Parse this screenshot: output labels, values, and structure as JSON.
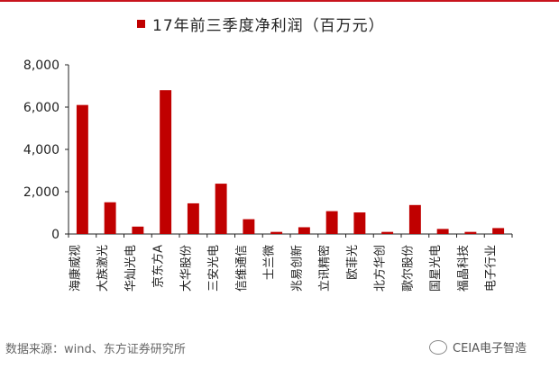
{
  "chart_data": {
    "type": "bar",
    "title": "",
    "xlabel": "",
    "ylabel": "",
    "ylim": [
      0,
      8000
    ],
    "yticks": [
      "0",
      "2,000",
      "4,000",
      "6,000",
      "8,000"
    ],
    "ytick_values": [
      0,
      2000,
      4000,
      6000,
      8000
    ],
    "grid": false,
    "legend_position": "top",
    "series": [
      {
        "name": "17年前三季度净利润（百万元）",
        "color": "#c00000",
        "values": [
          6100,
          1500,
          350,
          6800,
          1450,
          2380,
          700,
          100,
          320,
          1080,
          1020,
          100,
          1370,
          240,
          100,
          280
        ]
      }
    ],
    "categories": [
      "海康威视",
      "大族激光",
      "华灿光电",
      "京东方A",
      "大华股份",
      "三安光电",
      "信维通信",
      "士兰微",
      "兆易创新",
      "立讯精密",
      "欧菲光",
      "北方华创",
      "歌尔股份",
      "国星光电",
      "福晶科技",
      "电子行业"
    ]
  },
  "source_text": "数据来源：wind、东方证券研究所",
  "watermark_text": "CEIA电子智造",
  "watermark_icon": "wechat-icon",
  "accent_color": "#c8141d"
}
